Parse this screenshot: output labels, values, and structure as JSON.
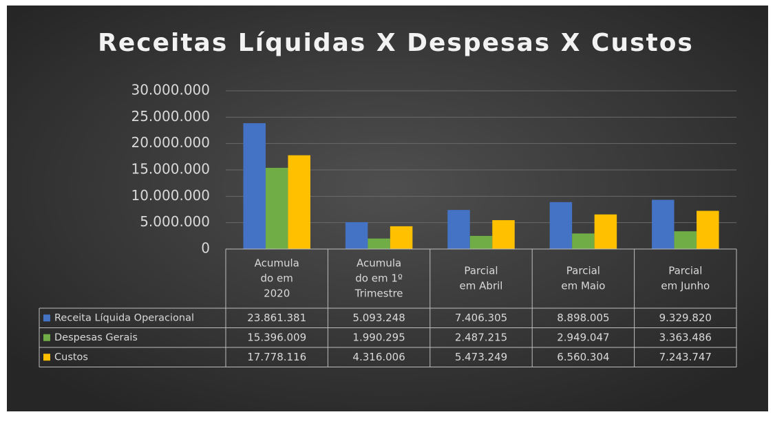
{
  "chart_data": {
    "type": "bar",
    "title": "Receitas Líquidas X Despesas X Custos",
    "categories": [
      [
        "Acumula",
        "do em",
        "2020"
      ],
      [
        "Acumula",
        "do em 1º",
        "Trimestre"
      ],
      [
        "Parcial",
        "em Abril"
      ],
      [
        "Parcial",
        "em Maio"
      ],
      [
        "Parcial",
        "em Junho"
      ]
    ],
    "series": [
      {
        "name": "Receita Líquida Operacional",
        "color": "#4472c4",
        "values": [
          23861381,
          5093248,
          7406305,
          8898005,
          9329820
        ],
        "value_labels": [
          "23.861.381",
          "5.093.248",
          "7.406.305",
          "8.898.005",
          "9.329.820"
        ]
      },
      {
        "name": "Despesas Gerais",
        "color": "#70ad47",
        "values": [
          15396009,
          1990295,
          2487215,
          2949047,
          3363486
        ],
        "value_labels": [
          "15.396.009",
          "1.990.295",
          "2.487.215",
          "2.949.047",
          "3.363.486"
        ]
      },
      {
        "name": "Custos",
        "color": "#ffc000",
        "values": [
          17778116,
          4316006,
          5473249,
          6560304,
          7243747
        ],
        "value_labels": [
          "17.778.116",
          "4.316.006",
          "5.473.249",
          "6.560.304",
          "7.243.747"
        ]
      }
    ],
    "ylim": [
      0,
      30000000
    ],
    "yticks": [
      0,
      {
        "value": 5000000,
        "label": "5.000.000"
      },
      {
        "value": 10000000,
        "label": "10.000.000"
      },
      {
        "value": 15000000,
        "label": "15.000.000"
      },
      {
        "value": 20000000,
        "label": "20.000.000"
      },
      {
        "value": 25000000,
        "label": "25.000.000"
      },
      {
        "value": 30000000,
        "label": "30.000.000"
      }
    ],
    "grid": true
  }
}
